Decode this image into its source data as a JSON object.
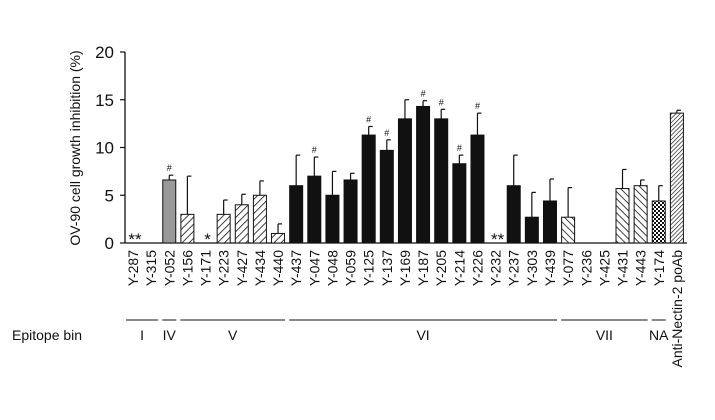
{
  "chart_data": {
    "type": "bar",
    "y_label": "OV-90 cell growth inhibition (%)",
    "categories": [
      "Y-287",
      "Y-315",
      "Y-052",
      "Y-156",
      "Y-171",
      "Y-223",
      "Y-427",
      "Y-434",
      "Y-440",
      "Y-437",
      "Y-047",
      "Y-048",
      "Y-059",
      "Y-125",
      "Y-137",
      "Y-169",
      "Y-187",
      "Y-205",
      "Y-214",
      "Y-226",
      "Y-232",
      "Y-237",
      "Y-303",
      "Y-439",
      "Y-077",
      "Y-236",
      "Y-425",
      "Y-431",
      "Y-443",
      "Y-174",
      "Anti-Nectin-2 poAb"
    ],
    "values": [
      0,
      0,
      6.6,
      3,
      0,
      3,
      4,
      5,
      1,
      6,
      7,
      5,
      6.6,
      11.3,
      9.7,
      13,
      14.3,
      13,
      8.3,
      11.3,
      0,
      6,
      2.7,
      4.4,
      2.7,
      0,
      0,
      5.7,
      6,
      4.4,
      13.6
    ],
    "errors": [
      0,
      0,
      0.5,
      4,
      0,
      1.5,
      1.1,
      1.5,
      1,
      3.2,
      2,
      2.5,
      0.7,
      0.9,
      1.1,
      2,
      0.6,
      1,
      0.9,
      2.3,
      0,
      3.2,
      2.6,
      2.3,
      3.1,
      0,
      0,
      2,
      0.6,
      1.6,
      0.3
    ],
    "markers": [
      "**",
      null,
      "#",
      null,
      "*",
      null,
      null,
      null,
      null,
      null,
      "#",
      null,
      null,
      "#",
      "#",
      null,
      "#",
      "#",
      "#",
      "#",
      "**",
      null,
      null,
      null,
      null,
      null,
      null,
      null,
      null,
      null,
      null
    ],
    "fills": [
      "none",
      "none",
      "gray",
      "hatch-forward",
      "none",
      "hatch-forward",
      "hatch-forward",
      "hatch-forward",
      "hatch-forward",
      "black",
      "black",
      "black",
      "black",
      "black",
      "black",
      "black",
      "black",
      "black",
      "black",
      "black",
      "none",
      "black",
      "black",
      "black",
      "hatch-back",
      "none",
      "none",
      "hatch-back",
      "hatch-back",
      "checker",
      "hatch-dense"
    ],
    "ylim": [
      0,
      20
    ],
    "yticks": [
      0,
      5,
      10,
      15,
      20
    ],
    "bin_title": "Epitope bin",
    "bins": [
      {
        "label": "I",
        "from": "Y-287",
        "to": "Y-315"
      },
      {
        "label": "IV",
        "from": "Y-052",
        "to": "Y-052"
      },
      {
        "label": "V",
        "from": "Y-156",
        "to": "Y-440"
      },
      {
        "label": "VI",
        "from": "Y-437",
        "to": "Y-439"
      },
      {
        "label": "VII",
        "from": "Y-077",
        "to": "Y-443"
      },
      {
        "label": "NA",
        "from": "Y-174",
        "to": "Y-174"
      }
    ]
  }
}
